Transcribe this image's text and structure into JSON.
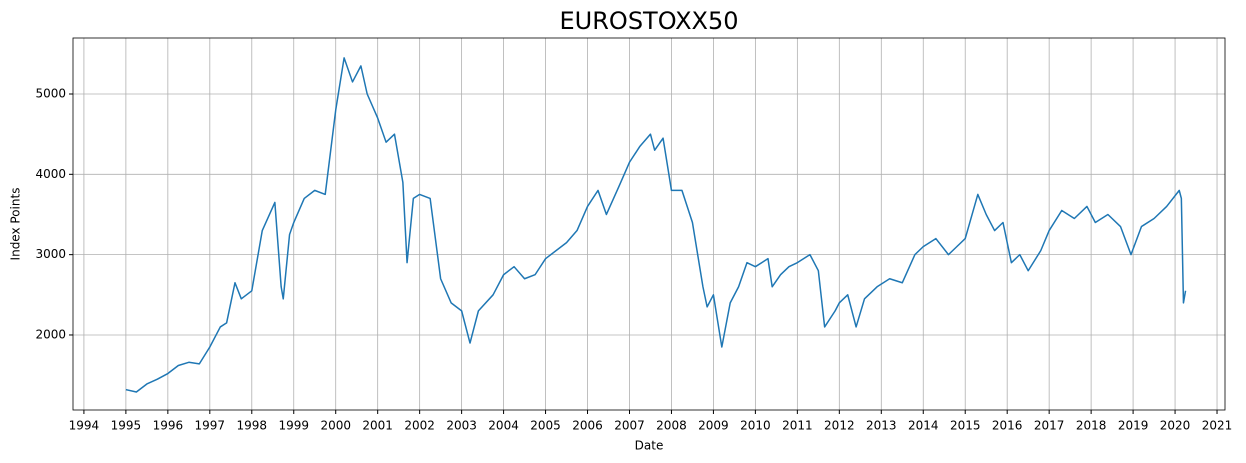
{
  "chart_data": {
    "type": "line",
    "title": "EUROSTOXX50",
    "x_label": "Date",
    "y_label": "Index Points",
    "x": [
      1995.0,
      1995.25,
      1995.5,
      1995.75,
      1996.0,
      1996.25,
      1996.5,
      1996.75,
      1997.0,
      1997.25,
      1997.4,
      1997.6,
      1997.75,
      1998.0,
      1998.25,
      1998.55,
      1998.7,
      1998.75,
      1998.9,
      1999.0,
      1999.25,
      1999.5,
      1999.75,
      2000.0,
      2000.2,
      2000.4,
      2000.6,
      2000.75,
      2001.0,
      2001.2,
      2001.4,
      2001.6,
      2001.7,
      2001.85,
      2002.0,
      2002.25,
      2002.5,
      2002.75,
      2003.0,
      2003.2,
      2003.4,
      2003.75,
      2004.0,
      2004.25,
      2004.5,
      2004.75,
      2005.0,
      2005.5,
      2005.75,
      2006.0,
      2006.25,
      2006.45,
      2006.75,
      2007.0,
      2007.25,
      2007.5,
      2007.6,
      2007.8,
      2008.0,
      2008.25,
      2008.5,
      2008.75,
      2008.85,
      2009.0,
      2009.2,
      2009.4,
      2009.6,
      2009.8,
      2010.0,
      2010.3,
      2010.4,
      2010.6,
      2010.8,
      2011.0,
      2011.3,
      2011.5,
      2011.65,
      2011.9,
      2012.0,
      2012.2,
      2012.4,
      2012.6,
      2012.9,
      2013.2,
      2013.5,
      2013.8,
      2014.0,
      2014.3,
      2014.6,
      2014.8,
      2015.0,
      2015.3,
      2015.5,
      2015.7,
      2015.9,
      2016.1,
      2016.3,
      2016.5,
      2016.8,
      2017.0,
      2017.3,
      2017.6,
      2017.9,
      2018.1,
      2018.4,
      2018.7,
      2018.95,
      2019.2,
      2019.5,
      2019.8,
      2020.1,
      2020.15,
      2020.2,
      2020.25
    ],
    "series": [
      {
        "name": "EUROSTOXX50",
        "color": "#1f77b4",
        "values": [
          1320,
          1290,
          1390,
          1450,
          1520,
          1620,
          1660,
          1640,
          1850,
          2100,
          2150,
          2650,
          2450,
          2550,
          3300,
          3650,
          2600,
          2450,
          3250,
          3400,
          3700,
          3800,
          3750,
          4800,
          5450,
          5150,
          5350,
          5000,
          4700,
          4400,
          4500,
          3900,
          2900,
          3700,
          3750,
          3700,
          2700,
          2400,
          2300,
          1900,
          2300,
          2500,
          2750,
          2850,
          2700,
          2750,
          2950,
          3150,
          3300,
          3600,
          3800,
          3500,
          3850,
          4150,
          4350,
          4500,
          4300,
          4450,
          3800,
          3800,
          3400,
          2600,
          2350,
          2500,
          1850,
          2400,
          2600,
          2900,
          2850,
          2950,
          2600,
          2750,
          2850,
          2900,
          3000,
          2800,
          2100,
          2300,
          2400,
          2500,
          2100,
          2450,
          2600,
          2700,
          2650,
          3000,
          3100,
          3200,
          3000,
          3100,
          3200,
          3750,
          3500,
          3300,
          3400,
          2900,
          3000,
          2800,
          3050,
          3300,
          3550,
          3450,
          3600,
          3400,
          3500,
          3350,
          3000,
          3350,
          3450,
          3600,
          3800,
          3700,
          2400,
          2550
        ]
      }
    ],
    "xlim": [
      1993.74,
      2021.19
    ],
    "ylim": [
      1066,
      5697
    ],
    "xticks": [
      1994,
      1995,
      1996,
      1997,
      1998,
      1999,
      2000,
      2001,
      2002,
      2003,
      2004,
      2005,
      2006,
      2007,
      2008,
      2009,
      2010,
      2011,
      2012,
      2013,
      2014,
      2015,
      2016,
      2017,
      2018,
      2019,
      2020,
      2021
    ],
    "yticks": [
      2000,
      3000,
      4000,
      5000
    ],
    "grid": true
  }
}
